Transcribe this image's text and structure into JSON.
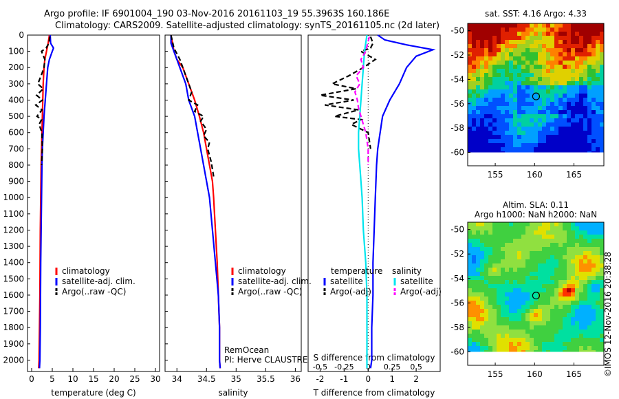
{
  "header": {
    "title_line1": "Argo profile: IF 6901004_190 03-Nov-2016 20161103_19 55.3963S 160.186E",
    "title_line2": "Climatology: CARS2009. Satellite-adjusted climatology: synTS_20161105.nc (2d later)"
  },
  "stamp": "©IMOS 12-Nov-2016 20:38:28",
  "colors": {
    "climatology": "#ff0000",
    "satellite": "#0000ff",
    "argo": "#000000",
    "salinity_sat": "#00e5ee",
    "salinity_argo": "#ff00ff"
  },
  "chart_data": [
    {
      "type": "line",
      "title": "",
      "xlabel": "temperature (deg C)",
      "ylabel": "",
      "xlim": [
        -1,
        31
      ],
      "ylim": [
        2070,
        0
      ],
      "y_inverted": true,
      "xticks": [
        0,
        5,
        10,
        15,
        20,
        25,
        30
      ],
      "yticks": [
        0,
        100,
        200,
        300,
        400,
        500,
        600,
        700,
        800,
        900,
        1000,
        1100,
        1200,
        1300,
        1400,
        1500,
        1600,
        1700,
        1800,
        1900,
        2000
      ],
      "legend": {
        "position": "bottom-center",
        "entries": [
          "climatology",
          "satellite-adj. clim.",
          "Argo(..raw -QC)"
        ]
      },
      "series": [
        {
          "name": "climatology",
          "color": "#ff0000",
          "style": "solid",
          "points": [
            [
              4.3,
              0
            ],
            [
              4.0,
              50
            ],
            [
              3.6,
              100
            ],
            [
              3.2,
              150
            ],
            [
              3.0,
              200
            ],
            [
              2.8,
              300
            ],
            [
              2.7,
              400
            ],
            [
              2.6,
              500
            ],
            [
              2.5,
              600
            ],
            [
              2.4,
              700
            ],
            [
              2.3,
              800
            ],
            [
              2.2,
              1000
            ],
            [
              2.1,
              1200
            ],
            [
              2.05,
              1400
            ],
            [
              2.0,
              1600
            ],
            [
              1.9,
              1800
            ],
            [
              1.8,
              2000
            ],
            [
              1.7,
              2050
            ]
          ]
        },
        {
          "name": "satellite-adj. clim.",
          "color": "#0000ff",
          "style": "solid",
          "points": [
            [
              4.5,
              0
            ],
            [
              4.6,
              50
            ],
            [
              5.3,
              80
            ],
            [
              5.0,
              100
            ],
            [
              4.3,
              150
            ],
            [
              3.9,
              200
            ],
            [
              3.6,
              300
            ],
            [
              3.3,
              400
            ],
            [
              3.0,
              500
            ],
            [
              2.8,
              600
            ],
            [
              2.6,
              700
            ],
            [
              2.5,
              800
            ],
            [
              2.4,
              1000
            ],
            [
              2.3,
              1200
            ],
            [
              2.2,
              1400
            ],
            [
              2.15,
              1600
            ],
            [
              2.1,
              1800
            ],
            [
              2.0,
              2000
            ],
            [
              1.9,
              2050
            ]
          ]
        },
        {
          "name": "Argo(..raw -QC)",
          "color": "#000000",
          "style": "dashed",
          "points": [
            [
              4.4,
              10
            ],
            [
              4.2,
              50
            ],
            [
              3.5,
              80
            ],
            [
              2.4,
              100
            ],
            [
              3.2,
              150
            ],
            [
              3.0,
              200
            ],
            [
              2.3,
              250
            ],
            [
              1.5,
              300
            ],
            [
              2.8,
              330
            ],
            [
              1.2,
              370
            ],
            [
              2.6,
              400
            ],
            [
              1.0,
              430
            ],
            [
              2.5,
              460
            ],
            [
              1.3,
              500
            ],
            [
              2.4,
              520
            ],
            [
              1.8,
              550
            ],
            [
              2.5,
              600
            ],
            [
              2.6,
              700
            ],
            [
              2.4,
              800
            ]
          ]
        }
      ]
    },
    {
      "type": "line",
      "title": "",
      "xlabel": "salinity",
      "ylabel": "",
      "xlim": [
        33.8,
        36.1
      ],
      "ylim": [
        2070,
        0
      ],
      "y_inverted": true,
      "xticks": [
        34,
        34.5,
        35,
        35.5,
        36
      ],
      "yticks": [
        0,
        100,
        200,
        300,
        400,
        500,
        600,
        700,
        800,
        900,
        1000,
        1100,
        1200,
        1300,
        1400,
        1500,
        1600,
        1700,
        1800,
        1900,
        2000
      ],
      "legend": {
        "position": "bottom-center",
        "entries": [
          "climatology",
          "satellite-adj. clim.",
          "Argo(..raw -QC)"
        ]
      },
      "annotations": [
        "RemOcean",
        "PI: Herve CLAUSTRE"
      ],
      "series": [
        {
          "name": "climatology",
          "color": "#ff0000",
          "style": "solid",
          "points": [
            [
              33.9,
              0
            ],
            [
              33.95,
              100
            ],
            [
              34.0,
              150
            ],
            [
              34.1,
              200
            ],
            [
              34.2,
              300
            ],
            [
              34.3,
              400
            ],
            [
              34.38,
              500
            ],
            [
              34.45,
              600
            ],
            [
              34.5,
              700
            ],
            [
              34.55,
              800
            ],
            [
              34.6,
              900
            ],
            [
              34.62,
              1000
            ],
            [
              34.65,
              1200
            ],
            [
              34.68,
              1400
            ],
            [
              34.7,
              1600
            ],
            [
              34.72,
              1800
            ],
            [
              34.72,
              2000
            ],
            [
              34.73,
              2050
            ]
          ]
        },
        {
          "name": "satellite-adj. clim.",
          "color": "#0000ff",
          "style": "solid",
          "points": [
            [
              33.9,
              0
            ],
            [
              33.9,
              50
            ],
            [
              33.95,
              100
            ],
            [
              34.0,
              150
            ],
            [
              34.05,
              200
            ],
            [
              34.15,
              300
            ],
            [
              34.2,
              400
            ],
            [
              34.3,
              500
            ],
            [
              34.35,
              600
            ],
            [
              34.4,
              700
            ],
            [
              34.45,
              800
            ],
            [
              34.5,
              900
            ],
            [
              34.55,
              1000
            ],
            [
              34.6,
              1200
            ],
            [
              34.65,
              1400
            ],
            [
              34.7,
              1600
            ],
            [
              34.72,
              1800
            ],
            [
              34.72,
              2000
            ],
            [
              34.73,
              2050
            ]
          ]
        },
        {
          "name": "Argo(..raw -QC)",
          "color": "#000000",
          "style": "dashed",
          "points": [
            [
              33.9,
              0
            ],
            [
              33.95,
              80
            ],
            [
              34.05,
              150
            ],
            [
              34.1,
              200
            ],
            [
              34.2,
              300
            ],
            [
              34.25,
              350
            ],
            [
              34.2,
              400
            ],
            [
              34.35,
              430
            ],
            [
              34.3,
              470
            ],
            [
              34.45,
              500
            ],
            [
              34.4,
              530
            ],
            [
              34.5,
              580
            ],
            [
              34.45,
              620
            ],
            [
              34.55,
              660
            ],
            [
              34.52,
              700
            ],
            [
              34.58,
              780
            ],
            [
              34.62,
              870
            ]
          ]
        }
      ]
    },
    {
      "type": "line",
      "title": "",
      "xlabel": "T difference from climatology",
      "xlabel_top": "S difference from climatology",
      "ylabel": "",
      "xlim": [
        -2.5,
        3.0
      ],
      "ylim": [
        2070,
        0
      ],
      "y_inverted": true,
      "xticks": [
        -2,
        -1,
        0,
        1,
        2
      ],
      "xticks_top": [
        -0.5,
        -0.25,
        0,
        0.25,
        0.5
      ],
      "legend": {
        "position": "bottom-center",
        "headers": [
          "temperature",
          "salinity"
        ],
        "entries": [
          "satellite",
          "Argo(-adj)",
          "satellite",
          "Argo(-adj)"
        ]
      },
      "series": [
        {
          "name": "satellite",
          "color": "#0000ff",
          "style": "solid",
          "points": [
            [
              0.4,
              0
            ],
            [
              0.7,
              30
            ],
            [
              1.6,
              60
            ],
            [
              2.7,
              90
            ],
            [
              2.0,
              130
            ],
            [
              1.6,
              200
            ],
            [
              1.3,
              300
            ],
            [
              0.9,
              400
            ],
            [
              0.6,
              500
            ],
            [
              0.5,
              600
            ],
            [
              0.4,
              700
            ],
            [
              0.35,
              800
            ],
            [
              0.3,
              1000
            ],
            [
              0.25,
              1200
            ],
            [
              0.2,
              1400
            ],
            [
              0.2,
              1600
            ],
            [
              0.15,
              1800
            ],
            [
              0.15,
              2000
            ],
            [
              0.1,
              2050
            ]
          ]
        },
        {
          "name": "Argo(-adj)",
          "color": "#000000",
          "style": "dashed",
          "points": [
            [
              0.1,
              10
            ],
            [
              0.2,
              50
            ],
            [
              0.1,
              80
            ],
            [
              -0.3,
              100
            ],
            [
              0.3,
              150
            ],
            [
              -0.2,
              200
            ],
            [
              -0.8,
              250
            ],
            [
              -1.5,
              300
            ],
            [
              -0.5,
              330
            ],
            [
              -2.0,
              370
            ],
            [
              -0.6,
              400
            ],
            [
              -1.8,
              430
            ],
            [
              -0.4,
              460
            ],
            [
              -1.4,
              500
            ],
            [
              -0.3,
              520
            ],
            [
              -0.7,
              550
            ],
            [
              0.0,
              600
            ],
            [
              0.1,
              700
            ]
          ]
        },
        {
          "name": "satellite",
          "color": "#00e5ee",
          "style": "solid",
          "points": [
            [
              -0.05,
              0
            ],
            [
              -0.15,
              100
            ],
            [
              -0.2,
              200
            ],
            [
              -0.25,
              300
            ],
            [
              -0.3,
              400
            ],
            [
              -0.35,
              500
            ],
            [
              -0.4,
              600
            ],
            [
              -0.4,
              700
            ],
            [
              -0.35,
              800
            ],
            [
              -0.3,
              900
            ],
            [
              -0.25,
              1000
            ],
            [
              -0.2,
              1200
            ],
            [
              -0.1,
              1400
            ],
            [
              -0.05,
              1600
            ],
            [
              -0.05,
              1800
            ],
            [
              -0.05,
              2000
            ],
            [
              -0.05,
              2050
            ]
          ]
        },
        {
          "name": "Argo(-adj)",
          "color": "#ff00ff",
          "style": "dashed",
          "points": [
            [
              0.05,
              10
            ],
            [
              -0.1,
              100
            ],
            [
              -0.3,
              150
            ],
            [
              -0.2,
              200
            ],
            [
              -0.5,
              250
            ],
            [
              -0.35,
              300
            ],
            [
              -0.55,
              350
            ],
            [
              -0.45,
              400
            ],
            [
              -0.4,
              450
            ],
            [
              -0.3,
              500
            ],
            [
              -0.2,
              550
            ],
            [
              -0.1,
              600
            ],
            [
              0.0,
              700
            ],
            [
              0.0,
              800
            ]
          ]
        }
      ]
    },
    {
      "type": "heatmap",
      "title": "sat. SST: 4.16 Argo: 4.33",
      "xlabel": "",
      "ylabel": "",
      "xlim": [
        151.5,
        168.8
      ],
      "ylim": [
        -61.1,
        -49.4
      ],
      "xticks": [
        155,
        160,
        165
      ],
      "yticks": [
        -50,
        -52,
        -54,
        -56,
        -58,
        -60
      ],
      "marker": {
        "x": 160.186,
        "y": -55.3963
      }
    },
    {
      "type": "heatmap",
      "title": "Altim. SLA: 0.11\nArgo h1000: NaN h2000: NaN",
      "xlabel": "",
      "ylabel": "",
      "xlim": [
        151.5,
        168.8
      ],
      "ylim": [
        -61.1,
        -49.4
      ],
      "xticks": [
        155,
        160,
        165
      ],
      "yticks": [
        -50,
        -52,
        -54,
        -56,
        -58,
        -60
      ],
      "marker": {
        "x": 160.186,
        "y": -55.3963
      }
    }
  ]
}
